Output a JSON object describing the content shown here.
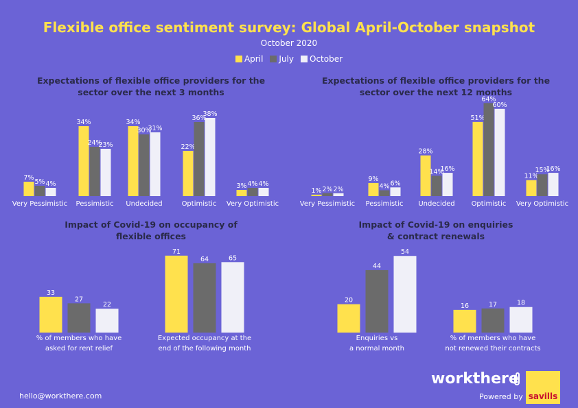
{
  "title": "Flexible office sentiment survey: Global April-October snapshot",
  "subtitle": "October 2020",
  "legend": [
    {
      "name": "April",
      "color": "#ffe14d"
    },
    {
      "name": "July",
      "color": "#6b6b6b"
    },
    {
      "name": "October",
      "color": "#f0f0f8"
    }
  ],
  "colors": [
    "#ffe14d",
    "#6b6b6b",
    "#f0f0f8"
  ],
  "chart_data": [
    {
      "type": "bar",
      "title": "Expectations of flexible office providers for the sector over the next 3 months",
      "categories": [
        "Very Pessimistic",
        "Pessimistic",
        "Undecided",
        "Optimistic",
        "Very Optimistic"
      ],
      "series": [
        {
          "name": "April",
          "values": [
            7,
            34,
            34,
            22,
            3
          ]
        },
        {
          "name": "July",
          "values": [
            5,
            24,
            30,
            36,
            4
          ]
        },
        {
          "name": "October",
          "values": [
            4,
            23,
            31,
            38,
            4
          ]
        }
      ],
      "labels": [
        [
          "7%",
          "5%",
          "4%"
        ],
        [
          "34%",
          "24%",
          "23%"
        ],
        [
          "34%",
          "30%",
          "31%"
        ],
        [
          "22%",
          "36%",
          "38%"
        ],
        [
          "3%",
          "4%",
          "4%"
        ]
      ],
      "ylim": [
        0,
        40
      ]
    },
    {
      "type": "bar",
      "title": "Expectations of flexible office providers for the sector over the next 12 months",
      "categories": [
        "Very Pessimistic",
        "Pessimistic",
        "Undecided",
        "Optimistic",
        "Very Optimistic"
      ],
      "series": [
        {
          "name": "April",
          "values": [
            1,
            9,
            28,
            51,
            11
          ]
        },
        {
          "name": "July",
          "values": [
            2,
            4,
            14,
            64,
            15
          ]
        },
        {
          "name": "October",
          "values": [
            2,
            6,
            16,
            60,
            16
          ]
        }
      ],
      "labels": [
        [
          "1%",
          "2%",
          "2%"
        ],
        [
          "9%",
          "4%",
          "6%"
        ],
        [
          "28%",
          "14%",
          "16%"
        ],
        [
          "51%",
          "64%",
          "60%"
        ],
        [
          "11%",
          "15%",
          "16%"
        ]
      ],
      "ylim": [
        0,
        64
      ]
    },
    {
      "type": "bar",
      "title": "Impact of Covid-19 on occupancy of flexible offices",
      "categories": [
        "% of members who have asked for rent relief",
        "Expected occupancy at the end of the following month"
      ],
      "series": [
        {
          "name": "April",
          "values": [
            33,
            71
          ]
        },
        {
          "name": "July",
          "values": [
            27,
            64
          ]
        },
        {
          "name": "October",
          "values": [
            22,
            65
          ]
        }
      ],
      "labels": [
        [
          "33",
          "27",
          "22"
        ],
        [
          "71",
          "64",
          "65"
        ]
      ],
      "ylim": [
        0,
        71
      ]
    },
    {
      "type": "bar",
      "title": "Impact of Covid-19 on enquiries & contract renewals",
      "categories": [
        "Enquiries vs a normal month",
        "% of members who have not renewed their contracts"
      ],
      "series": [
        {
          "name": "April",
          "values": [
            20,
            16
          ]
        },
        {
          "name": "July",
          "values": [
            44,
            17
          ]
        },
        {
          "name": "October",
          "values": [
            54,
            18
          ]
        }
      ],
      "labels": [
        [
          "20",
          "44",
          "54"
        ],
        [
          "16",
          "17",
          "18"
        ]
      ],
      "ylim": [
        0,
        54
      ]
    }
  ],
  "cat_lines": [
    [
      [
        "Very Pessimistic"
      ],
      [
        "Pessimistic"
      ],
      [
        "Undecided"
      ],
      [
        "Optimistic"
      ],
      [
        "Very Optimistic"
      ]
    ],
    [
      [
        "Very Pessimistic"
      ],
      [
        "Pessimistic"
      ],
      [
        "Undecided"
      ],
      [
        "Optimistic"
      ],
      [
        "Very Optimistic"
      ]
    ],
    [
      [
        "% of members who have",
        "asked for rent relief"
      ],
      [
        "Expected occupancy at the",
        "end of the following month"
      ]
    ],
    [
      [
        "Enquiries vs",
        "a normal month"
      ],
      [
        "% of members who have",
        "not renewed their contracts"
      ]
    ]
  ],
  "chart_title_lines": [
    [
      "Expectations of flexible office providers for the",
      "sector over the next 3 months"
    ],
    [
      "Expectations of flexible office providers for the",
      "sector over the next 12 months"
    ],
    [
      "Impact of Covid-19 on occupancy of",
      "flexible offices"
    ],
    [
      "Impact of Covid-19 on enquiries",
      "& contract renewals"
    ]
  ],
  "footer": {
    "email": "hello@workthere.com",
    "brand": "workthere",
    "powered": "Powered by",
    "partner": "savills",
    "brand_icon": "paperclip-icon"
  }
}
